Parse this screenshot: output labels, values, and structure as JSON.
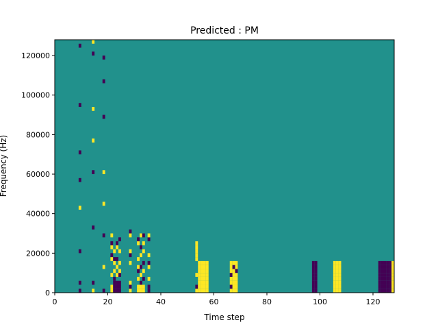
{
  "chart_data": {
    "type": "heatmap",
    "title": "Predicted : PM",
    "xlabel": "Time step",
    "ylabel": "Frequency (Hz)",
    "xlim": [
      0,
      128
    ],
    "ylim": [
      0,
      128000
    ],
    "xticks": [
      0,
      20,
      40,
      60,
      80,
      100,
      120
    ],
    "yticks": [
      0,
      20000,
      40000,
      60000,
      80000,
      100000,
      120000
    ],
    "grid": false,
    "colormap": "viridis",
    "background_value": 0,
    "value_colors": {
      "-1": "#440154",
      "0": "#21918c",
      "1": "#fde725"
    },
    "cell_size": {
      "time_step": 1,
      "frequency_hz": 2000
    },
    "cells": [
      [
        9,
        0,
        -1
      ],
      [
        9,
        2,
        -1
      ],
      [
        9,
        10,
        -1
      ],
      [
        9,
        21,
        1
      ],
      [
        9,
        28,
        -1
      ],
      [
        9,
        35,
        -1
      ],
      [
        9,
        47,
        -1
      ],
      [
        9,
        62,
        -1
      ],
      [
        14,
        0,
        1
      ],
      [
        14,
        2,
        -1
      ],
      [
        14,
        16,
        -1
      ],
      [
        14,
        30,
        -1
      ],
      [
        14,
        38,
        1
      ],
      [
        14,
        46,
        1
      ],
      [
        14,
        60,
        -1
      ],
      [
        14,
        63,
        1
      ],
      [
        18,
        0,
        -1
      ],
      [
        18,
        6,
        1
      ],
      [
        18,
        14,
        -1
      ],
      [
        18,
        22,
        1
      ],
      [
        18,
        30,
        1
      ],
      [
        18,
        44,
        -1
      ],
      [
        18,
        53,
        -1
      ],
      [
        18,
        59,
        -1
      ],
      [
        21,
        0,
        1
      ],
      [
        21,
        1,
        1
      ],
      [
        21,
        4,
        1
      ],
      [
        21,
        8,
        1
      ],
      [
        21,
        9,
        -1
      ],
      [
        21,
        11,
        1
      ],
      [
        21,
        12,
        -1
      ],
      [
        21,
        14,
        1
      ],
      [
        22,
        0,
        -1
      ],
      [
        22,
        1,
        -1
      ],
      [
        22,
        2,
        -1
      ],
      [
        22,
        3,
        -1
      ],
      [
        22,
        5,
        1
      ],
      [
        22,
        7,
        1
      ],
      [
        22,
        8,
        -1
      ],
      [
        22,
        10,
        1
      ],
      [
        23,
        0,
        -1
      ],
      [
        23,
        1,
        -1
      ],
      [
        23,
        2,
        -1
      ],
      [
        23,
        4,
        1
      ],
      [
        23,
        6,
        1
      ],
      [
        23,
        8,
        -1
      ],
      [
        23,
        11,
        1
      ],
      [
        23,
        12,
        -1
      ],
      [
        24,
        0,
        -1
      ],
      [
        24,
        1,
        -1
      ],
      [
        24,
        2,
        -1
      ],
      [
        24,
        4,
        -1
      ],
      [
        24,
        5,
        1
      ],
      [
        24,
        7,
        1
      ],
      [
        24,
        10,
        1
      ],
      [
        24,
        13,
        -1
      ],
      [
        28,
        0,
        1
      ],
      [
        28,
        1,
        -1
      ],
      [
        28,
        2,
        1
      ],
      [
        28,
        7,
        1
      ],
      [
        28,
        9,
        -1
      ],
      [
        28,
        10,
        1
      ],
      [
        28,
        14,
        1
      ],
      [
        28,
        15,
        -1
      ],
      [
        31,
        0,
        1
      ],
      [
        31,
        1,
        1
      ],
      [
        31,
        3,
        1
      ],
      [
        31,
        5,
        -1
      ],
      [
        31,
        6,
        1
      ],
      [
        31,
        8,
        1
      ],
      [
        31,
        12,
        1
      ],
      [
        31,
        13,
        -1
      ],
      [
        32,
        0,
        1
      ],
      [
        32,
        1,
        1
      ],
      [
        32,
        2,
        -1
      ],
      [
        32,
        4,
        1
      ],
      [
        32,
        6,
        -1
      ],
      [
        32,
        9,
        1
      ],
      [
        32,
        11,
        -1
      ],
      [
        32,
        14,
        1
      ],
      [
        33,
        0,
        1
      ],
      [
        33,
        1,
        1
      ],
      [
        33,
        3,
        -1
      ],
      [
        33,
        5,
        1
      ],
      [
        33,
        7,
        -1
      ],
      [
        33,
        10,
        1
      ],
      [
        33,
        12,
        1
      ],
      [
        33,
        14,
        -1
      ],
      [
        35,
        0,
        -1
      ],
      [
        35,
        1,
        -1
      ],
      [
        35,
        3,
        1
      ],
      [
        35,
        6,
        1
      ],
      [
        35,
        7,
        -1
      ],
      [
        35,
        9,
        1
      ],
      [
        35,
        13,
        -1
      ],
      [
        35,
        14,
        1
      ],
      [
        53,
        0,
        1
      ],
      [
        53,
        1,
        -1
      ],
      [
        53,
        4,
        1
      ],
      [
        53,
        8,
        1
      ],
      [
        53,
        9,
        1
      ],
      [
        53,
        10,
        1
      ],
      [
        53,
        11,
        1
      ],
      [
        53,
        12,
        1
      ],
      [
        54,
        0,
        1
      ],
      [
        54,
        1,
        1
      ],
      [
        54,
        2,
        1
      ],
      [
        54,
        3,
        1
      ],
      [
        54,
        4,
        1
      ],
      [
        54,
        5,
        1
      ],
      [
        54,
        6,
        1
      ],
      [
        54,
        7,
        1
      ],
      [
        55,
        0,
        1
      ],
      [
        55,
        1,
        1
      ],
      [
        55,
        2,
        1
      ],
      [
        55,
        3,
        1
      ],
      [
        55,
        4,
        1
      ],
      [
        55,
        5,
        1
      ],
      [
        55,
        6,
        1
      ],
      [
        55,
        7,
        1
      ],
      [
        56,
        0,
        1
      ],
      [
        56,
        1,
        1
      ],
      [
        56,
        2,
        1
      ],
      [
        56,
        3,
        1
      ],
      [
        56,
        4,
        1
      ],
      [
        56,
        5,
        1
      ],
      [
        56,
        6,
        1
      ],
      [
        56,
        7,
        1
      ],
      [
        57,
        0,
        1
      ],
      [
        57,
        1,
        1
      ],
      [
        57,
        2,
        1
      ],
      [
        57,
        3,
        1
      ],
      [
        57,
        4,
        1
      ],
      [
        57,
        5,
        1
      ],
      [
        57,
        6,
        1
      ],
      [
        57,
        7,
        1
      ],
      [
        66,
        0,
        1
      ],
      [
        66,
        1,
        -1
      ],
      [
        66,
        2,
        1
      ],
      [
        66,
        3,
        1
      ],
      [
        66,
        4,
        -1
      ],
      [
        66,
        5,
        1
      ],
      [
        66,
        6,
        1
      ],
      [
        66,
        7,
        1
      ],
      [
        67,
        0,
        1
      ],
      [
        67,
        1,
        1
      ],
      [
        67,
        2,
        1
      ],
      [
        67,
        3,
        1
      ],
      [
        67,
        4,
        1
      ],
      [
        67,
        5,
        1
      ],
      [
        67,
        6,
        -1
      ],
      [
        67,
        7,
        1
      ],
      [
        68,
        0,
        1
      ],
      [
        68,
        1,
        1
      ],
      [
        68,
        2,
        1
      ],
      [
        68,
        3,
        1
      ],
      [
        68,
        4,
        1
      ],
      [
        68,
        5,
        -1
      ],
      [
        68,
        6,
        1
      ],
      [
        68,
        7,
        1
      ],
      [
        97,
        0,
        -1
      ],
      [
        97,
        1,
        -1
      ],
      [
        97,
        2,
        -1
      ],
      [
        97,
        3,
        -1
      ],
      [
        97,
        4,
        -1
      ],
      [
        97,
        5,
        -1
      ],
      [
        97,
        6,
        -1
      ],
      [
        97,
        7,
        -1
      ],
      [
        98,
        0,
        -1
      ],
      [
        98,
        1,
        -1
      ],
      [
        98,
        2,
        -1
      ],
      [
        98,
        3,
        -1
      ],
      [
        98,
        4,
        -1
      ],
      [
        98,
        5,
        -1
      ],
      [
        98,
        6,
        -1
      ],
      [
        98,
        7,
        -1
      ],
      [
        105,
        0,
        1
      ],
      [
        105,
        1,
        1
      ],
      [
        105,
        2,
        1
      ],
      [
        105,
        3,
        1
      ],
      [
        105,
        4,
        1
      ],
      [
        105,
        5,
        1
      ],
      [
        105,
        6,
        1
      ],
      [
        105,
        7,
        1
      ],
      [
        106,
        0,
        1
      ],
      [
        106,
        1,
        1
      ],
      [
        106,
        2,
        1
      ],
      [
        106,
        3,
        1
      ],
      [
        106,
        4,
        1
      ],
      [
        106,
        5,
        1
      ],
      [
        106,
        6,
        1
      ],
      [
        106,
        7,
        1
      ],
      [
        107,
        0,
        1
      ],
      [
        107,
        1,
        1
      ],
      [
        107,
        2,
        1
      ],
      [
        107,
        3,
        1
      ],
      [
        107,
        4,
        1
      ],
      [
        107,
        5,
        1
      ],
      [
        107,
        6,
        1
      ],
      [
        107,
        7,
        1
      ],
      [
        122,
        0,
        -1
      ],
      [
        122,
        1,
        -1
      ],
      [
        122,
        2,
        -1
      ],
      [
        122,
        3,
        -1
      ],
      [
        122,
        4,
        -1
      ],
      [
        122,
        5,
        -1
      ],
      [
        122,
        6,
        -1
      ],
      [
        122,
        7,
        -1
      ],
      [
        123,
        0,
        -1
      ],
      [
        123,
        1,
        -1
      ],
      [
        123,
        2,
        -1
      ],
      [
        123,
        3,
        -1
      ],
      [
        123,
        4,
        -1
      ],
      [
        123,
        5,
        -1
      ],
      [
        123,
        6,
        -1
      ],
      [
        123,
        7,
        -1
      ],
      [
        124,
        0,
        -1
      ],
      [
        124,
        1,
        -1
      ],
      [
        124,
        2,
        -1
      ],
      [
        124,
        3,
        -1
      ],
      [
        124,
        4,
        -1
      ],
      [
        124,
        5,
        -1
      ],
      [
        124,
        6,
        -1
      ],
      [
        124,
        7,
        -1
      ],
      [
        125,
        0,
        -1
      ],
      [
        125,
        1,
        -1
      ],
      [
        125,
        2,
        -1
      ],
      [
        125,
        3,
        -1
      ],
      [
        125,
        4,
        -1
      ],
      [
        125,
        5,
        -1
      ],
      [
        125,
        6,
        -1
      ],
      [
        125,
        7,
        -1
      ],
      [
        126,
        0,
        -1
      ],
      [
        126,
        1,
        -1
      ],
      [
        126,
        2,
        -1
      ],
      [
        126,
        3,
        -1
      ],
      [
        126,
        4,
        -1
      ],
      [
        126,
        5,
        -1
      ],
      [
        126,
        6,
        -1
      ],
      [
        126,
        7,
        -1
      ],
      [
        127,
        0,
        1
      ],
      [
        127,
        1,
        1
      ],
      [
        127,
        2,
        1
      ],
      [
        127,
        3,
        1
      ],
      [
        127,
        4,
        1
      ],
      [
        127,
        5,
        1
      ],
      [
        127,
        6,
        1
      ],
      [
        127,
        7,
        1
      ]
    ]
  }
}
